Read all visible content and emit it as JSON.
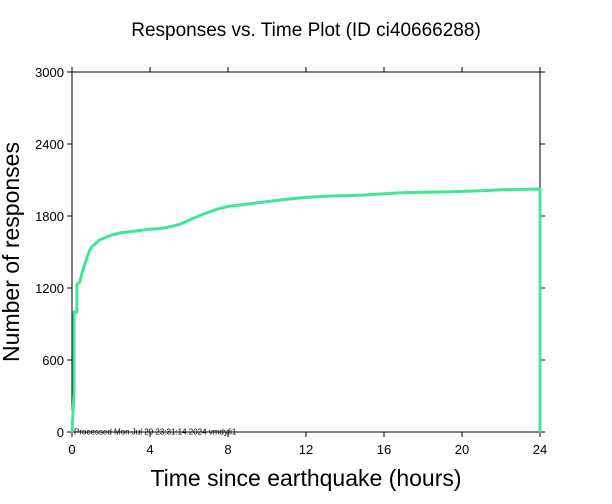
{
  "chart_data": {
    "type": "line",
    "title": "Responses vs. Time Plot (ID ci40666288)",
    "xlabel": "Time since earthquake (hours)",
    "ylabel": "Number of responses",
    "xlim": [
      0,
      24
    ],
    "ylim": [
      0,
      3000
    ],
    "xticks": [
      0,
      4,
      8,
      12,
      16,
      20,
      24
    ],
    "yticks": [
      0,
      600,
      1200,
      1800,
      2400,
      3000
    ],
    "grid": false,
    "annotation": "Processed Mon Jul 29 23:31:14 2024 vmdyfi1",
    "series": [
      {
        "color": "#3fe895",
        "points": [
          [
            0,
            0
          ],
          [
            0.1,
            330
          ],
          [
            0.1,
            1000
          ],
          [
            0.25,
            1000
          ],
          [
            0.25,
            1230
          ],
          [
            0.4,
            1250
          ],
          [
            0.5,
            1320
          ],
          [
            0.6,
            1370
          ],
          [
            0.7,
            1420
          ],
          [
            0.8,
            1470
          ],
          [
            0.9,
            1510
          ],
          [
            1.0,
            1540
          ],
          [
            1.2,
            1570
          ],
          [
            1.4,
            1600
          ],
          [
            1.7,
            1620
          ],
          [
            2.0,
            1640
          ],
          [
            2.5,
            1660
          ],
          [
            3.0,
            1670
          ],
          [
            3.5,
            1680
          ],
          [
            4.0,
            1690
          ],
          [
            4.5,
            1695
          ],
          [
            5.0,
            1710
          ],
          [
            5.5,
            1730
          ],
          [
            5.8,
            1750
          ],
          [
            6.2,
            1780
          ],
          [
            6.8,
            1820
          ],
          [
            7.5,
            1860
          ],
          [
            8.0,
            1880
          ],
          [
            9.0,
            1900
          ],
          [
            10.0,
            1920
          ],
          [
            11.0,
            1940
          ],
          [
            12.0,
            1955
          ],
          [
            13.0,
            1965
          ],
          [
            14.0,
            1970
          ],
          [
            15.0,
            1975
          ],
          [
            16.0,
            1985
          ],
          [
            17.0,
            1995
          ],
          [
            18.0,
            1998
          ],
          [
            19.0,
            2000
          ],
          [
            20.0,
            2005
          ],
          [
            21.0,
            2010
          ],
          [
            22.0,
            2018
          ],
          [
            23.0,
            2022
          ],
          [
            24.0,
            2025
          ],
          [
            24.0,
            0
          ]
        ]
      }
    ]
  }
}
